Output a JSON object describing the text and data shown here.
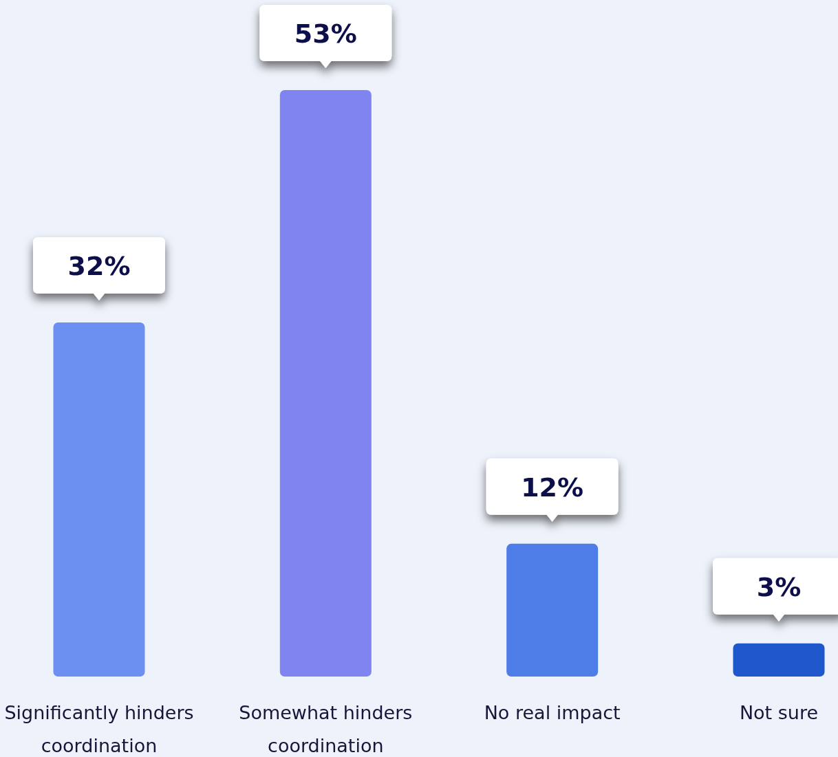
{
  "chart_data": {
    "type": "bar",
    "categories": [
      "Significantly hinders coordination",
      "Somewhat hinders coordination",
      "No real impact",
      "Not sure"
    ],
    "values": [
      32,
      53,
      12,
      3
    ],
    "value_labels": [
      "32%",
      "53%",
      "12%",
      "3%"
    ],
    "colors": [
      "#6c8ff2",
      "#7f84f0",
      "#4f7de8",
      "#1f58cc"
    ]
  }
}
